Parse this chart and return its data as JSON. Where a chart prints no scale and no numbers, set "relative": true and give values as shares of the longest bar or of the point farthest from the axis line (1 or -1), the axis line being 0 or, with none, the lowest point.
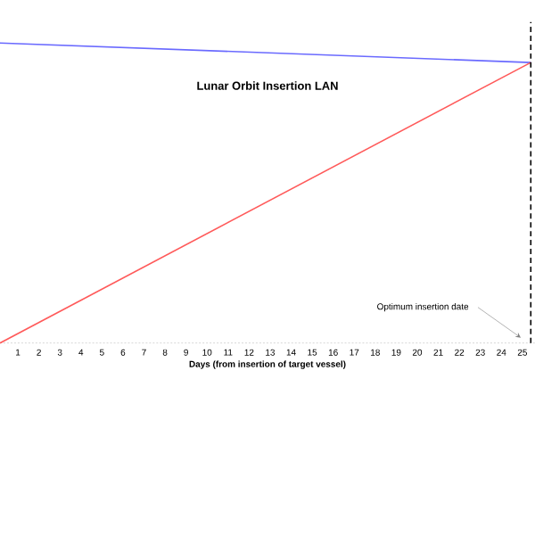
{
  "chart_data": {
    "type": "line",
    "title": "Lunar Orbit Insertion LAN",
    "xlabel": "Days (from insertion of target vessel)",
    "relative": true,
    "xlim": [
      0.15,
      25.6
    ],
    "xticks": [
      1,
      2,
      3,
      4,
      5,
      6,
      7,
      8,
      9,
      10,
      11,
      12,
      13,
      14,
      15,
      16,
      17,
      18,
      19,
      20,
      21,
      22,
      23,
      24,
      25
    ],
    "x": [
      0.15,
      25.4
    ],
    "series": [
      {
        "color": "#6a6aff",
        "values": [
          1,
          0.935
        ]
      },
      {
        "color": "#ff5a5a",
        "values": [
          0,
          0.935
        ]
      }
    ],
    "ref_lines": [
      {
        "axis": "x",
        "value": 25.4,
        "color": "#000000",
        "line_style": "dashed"
      }
    ],
    "annotations": [
      "Optimum insertion date"
    ]
  }
}
